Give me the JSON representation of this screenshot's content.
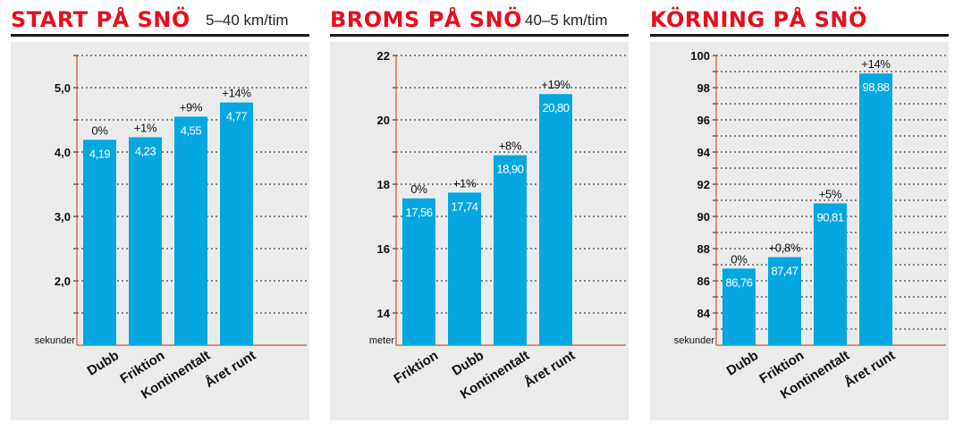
{
  "colors": {
    "title": "#e4101e",
    "bar": "#05a7e0",
    "background": "#eaecec",
    "axis": "#c3562c",
    "grid": "#1a1a1a"
  },
  "chart_data": [
    {
      "type": "bar",
      "title": "START PÅ SNÖ",
      "subtitle": "5–40 km/tim",
      "ylabel": "sekunder",
      "categories": [
        "Dubb",
        "Friktion",
        "Kontinentalt",
        "Året runt"
      ],
      "values": [
        4.19,
        4.23,
        4.55,
        4.77
      ],
      "value_labels": [
        "4,19",
        "4,23",
        "4,55",
        "4,77"
      ],
      "percent_labels": [
        "0%",
        "+1%",
        "+9%",
        "+14%"
      ],
      "ylim": [
        1.0,
        5.5
      ],
      "yticks": [
        2.0,
        3.0,
        4.0,
        5.0
      ],
      "ytick_labels": [
        "2,0",
        "3,0",
        "4,0",
        "5,0"
      ],
      "grid": true
    },
    {
      "type": "bar",
      "title": "BROMS PÅ SNÖ",
      "subtitle": "40–5 km/tim",
      "ylabel": "meter",
      "categories": [
        "Friktion",
        "Dubb",
        "Kontinentalt",
        "Året runt"
      ],
      "values": [
        17.56,
        17.74,
        18.9,
        20.8
      ],
      "value_labels": [
        "17,56",
        "17,74",
        "18,90",
        "20,80"
      ],
      "percent_labels": [
        "0%",
        "+1%",
        "+8%",
        "+19%"
      ],
      "ylim": [
        13,
        22
      ],
      "yticks": [
        14,
        16,
        18,
        20,
        22
      ],
      "ytick_labels": [
        "14",
        "16",
        "18",
        "20",
        "22"
      ],
      "grid": true
    },
    {
      "type": "bar",
      "title": "KÖRNING PÅ SNÖ",
      "subtitle": "",
      "ylabel": "sekunder",
      "categories": [
        "Dubb",
        "Friktion",
        "Kontinentalt",
        "Året runt"
      ],
      "values": [
        86.76,
        87.47,
        90.81,
        98.88
      ],
      "value_labels": [
        "86,76",
        "87,47",
        "90,81",
        "98,88"
      ],
      "percent_labels": [
        "0%",
        "+0,8%",
        "+5%",
        "+14%"
      ],
      "ylim": [
        82,
        100
      ],
      "yticks": [
        84,
        86,
        88,
        90,
        92,
        94,
        96,
        98,
        100
      ],
      "ytick_labels": [
        "84",
        "86",
        "88",
        "90",
        "92",
        "94",
        "96",
        "98",
        "100"
      ],
      "grid": true
    }
  ]
}
